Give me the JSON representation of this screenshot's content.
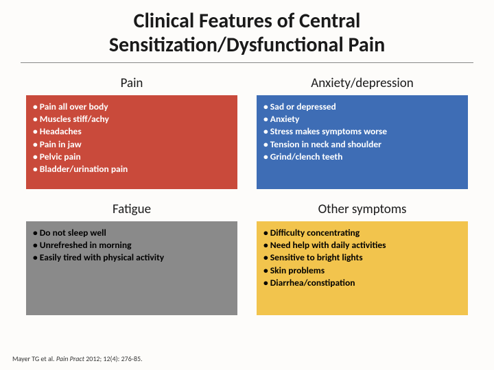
{
  "title": "Clinical Features of Central Sensitization/Dysfunctional Pain",
  "panels": {
    "pain": {
      "header": "Pain",
      "items": [
        "Pain all over body",
        "Muscles stiff/achy",
        "Headaches",
        "Pain in jaw",
        "Pelvic pain",
        "Bladder/urination pain"
      ],
      "bg_color": "#c94a3b"
    },
    "anxiety": {
      "header": "Anxiety/depression",
      "items": [
        "Sad or depressed",
        "Anxiety",
        "Stress makes symptoms worse",
        "Tension in neck and shoulder",
        "Grind/clench teeth"
      ],
      "bg_color": "#3e6db5"
    },
    "fatigue": {
      "header": "Fatigue",
      "items": [
        "Do not sleep well",
        "Unrefreshed in morning",
        "Easily tired with physical activity"
      ],
      "bg_color": "#8a8a8a"
    },
    "other": {
      "header": "Other symptoms",
      "items": [
        "Difficulty concentrating",
        "Need help with daily activities",
        "Sensitive to bright lights",
        "Skin problems",
        "Diarrhea/constipation"
      ],
      "bg_color": "#f2c44d"
    }
  },
  "citation": {
    "authors": "Mayer TG et al.",
    "journal": "Pain Pract",
    "rest": "2012; 12(4): 276-85."
  },
  "style": {
    "title_fontsize": 30,
    "header_fontsize": 19,
    "body_fontsize": 13.5,
    "citation_fontsize": 10,
    "background_color": "#fdfcfa",
    "panel_text_light": "#ffffff",
    "panel_text_dark": "#000000"
  }
}
